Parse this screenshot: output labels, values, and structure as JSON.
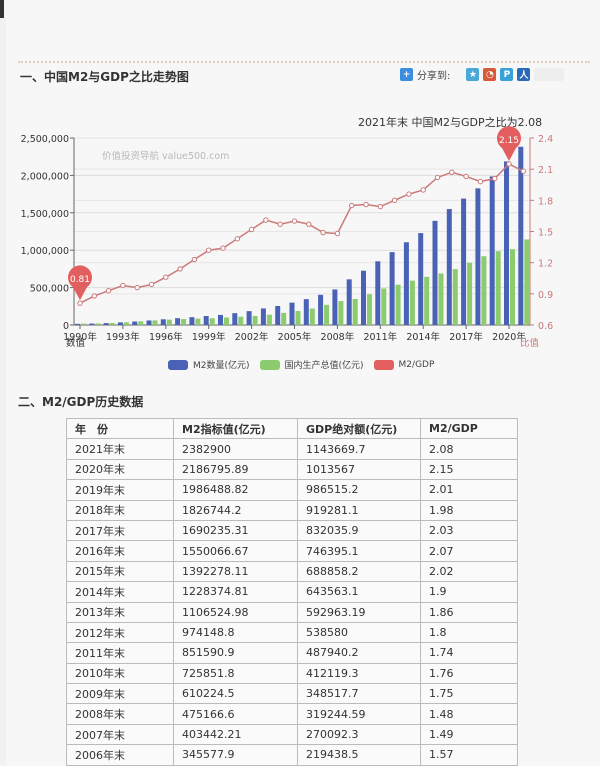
{
  "section1": {
    "title": "一、中国M2与GDP之比走势图",
    "share": {
      "label": "分享到:",
      "icons": [
        "qzone-icon",
        "weibo-icon",
        "tqq-icon",
        "renren-icon"
      ]
    },
    "subtitle": "2021年末 中国M2与GDP之比为2.08",
    "watermark": "价值投资导航 value500.com"
  },
  "section2": {
    "title": "二、M2/GDP历史数据"
  },
  "colors": {
    "m2": "#4a62b5",
    "gdp": "#8ccc6e",
    "ratio": "#e35f5f",
    "ratio_line": "#c97a7a"
  },
  "chart_data": {
    "type": "bar",
    "title": "2021年末 中国M2与GDP之比为2.08",
    "xlabel": "数值",
    "ylabel_left": "",
    "ylabel_right": "比值",
    "categories": [
      "1990年",
      "1991年",
      "1992年",
      "1993年",
      "1994年",
      "1995年",
      "1996年",
      "1997年",
      "1998年",
      "1999年",
      "2000年",
      "2001年",
      "2002年",
      "2003年",
      "2004年",
      "2005年",
      "2006年",
      "2007年",
      "2008年",
      "2009年",
      "2010年",
      "2011年",
      "2012年",
      "2013年",
      "2014年",
      "2015年",
      "2016年",
      "2017年",
      "2018年",
      "2019年",
      "2020年",
      "2021年"
    ],
    "x_tick_labels": [
      "1990年",
      "1993年",
      "1996年",
      "1999年",
      "2002年",
      "2005年",
      "2008年",
      "2011年",
      "2014年",
      "2017年",
      "2020年"
    ],
    "y_left_ticks": [
      "0",
      "500,000",
      "1,000,000",
      "1,500,000",
      "2,000,000",
      "2,500,000"
    ],
    "y_left_range": [
      0,
      2500000
    ],
    "y_right_ticks": [
      "0.6",
      "0.9",
      "1.2",
      "1.5",
      "1.8",
      "2.1",
      "2.4"
    ],
    "y_right_range": [
      0.6,
      2.4
    ],
    "series": [
      {
        "name": "M2数量(亿元)",
        "axis": "left",
        "type": "bar",
        "values": [
          15293,
          19350,
          25402,
          34880,
          46924,
          60750,
          76095,
          90995,
          104499,
          119898,
          134610,
          158302,
          185007,
          221223,
          254107,
          298756,
          345577.9,
          403442.21,
          475166.6,
          610224.5,
          725851.8,
          851590.9,
          974148.8,
          1106524.98,
          1228374.81,
          1392278.11,
          1550066.67,
          1690235.31,
          1826744.2,
          1986488.82,
          2186795.89,
          2382900
        ]
      },
      {
        "name": "国内生产总值(亿元)",
        "axis": "left",
        "type": "bar",
        "values": [
          18872,
          22006,
          27195,
          35673,
          48638,
          61340,
          71814,
          79715,
          85196,
          90564,
          100280,
          110863,
          121717,
          137422,
          161840,
          187319,
          219438.5,
          270092.3,
          319244.59,
          348517.7,
          412119.3,
          487940.2,
          538580,
          592963.19,
          643563.1,
          688858.2,
          746395.1,
          832035.9,
          919281.1,
          986515.2,
          1013567,
          1143669.7
        ]
      },
      {
        "name": "M2/GDP",
        "axis": "right",
        "type": "line",
        "values": [
          0.81,
          0.88,
          0.93,
          0.98,
          0.96,
          0.99,
          1.06,
          1.14,
          1.23,
          1.32,
          1.34,
          1.43,
          1.52,
          1.61,
          1.57,
          1.6,
          1.57,
          1.49,
          1.48,
          1.75,
          1.76,
          1.74,
          1.8,
          1.86,
          1.9,
          2.02,
          2.07,
          2.03,
          1.98,
          2.01,
          2.15,
          2.08
        ]
      }
    ],
    "markers": [
      {
        "label": "0.81",
        "x": "1990年"
      },
      {
        "label": "2.15",
        "x": "2020年"
      }
    ],
    "legend": [
      "M2数量(亿元)",
      "国内生产总值(亿元)",
      "M2/GDP"
    ],
    "legend_position": "bottom",
    "grid": true
  },
  "table": {
    "headers": [
      "年　份",
      "M2指标值(亿元)",
      "GDP绝对额(亿元)",
      "M2/GDP"
    ],
    "rows": [
      [
        "2021年末",
        "2382900",
        "1143669.7",
        "2.08"
      ],
      [
        "2020年末",
        "2186795.89",
        "1013567",
        "2.15"
      ],
      [
        "2019年末",
        "1986488.82",
        "986515.2",
        "2.01"
      ],
      [
        "2018年末",
        "1826744.2",
        "919281.1",
        "1.98"
      ],
      [
        "2017年末",
        "1690235.31",
        "832035.9",
        "2.03"
      ],
      [
        "2016年末",
        "1550066.67",
        "746395.1",
        "2.07"
      ],
      [
        "2015年末",
        "1392278.11",
        "688858.2",
        "2.02"
      ],
      [
        "2014年末",
        "1228374.81",
        "643563.1",
        "1.9"
      ],
      [
        "2013年末",
        "1106524.98",
        "592963.19",
        "1.86"
      ],
      [
        "2012年末",
        "974148.8",
        "538580",
        "1.8"
      ],
      [
        "2011年末",
        "851590.9",
        "487940.2",
        "1.74"
      ],
      [
        "2010年末",
        "725851.8",
        "412119.3",
        "1.76"
      ],
      [
        "2009年末",
        "610224.5",
        "348517.7",
        "1.75"
      ],
      [
        "2008年末",
        "475166.6",
        "319244.59",
        "1.48"
      ],
      [
        "2007年末",
        "403442.21",
        "270092.3",
        "1.49"
      ],
      [
        "2006年末",
        "345577.9",
        "219438.5",
        "1.57"
      ]
    ]
  }
}
